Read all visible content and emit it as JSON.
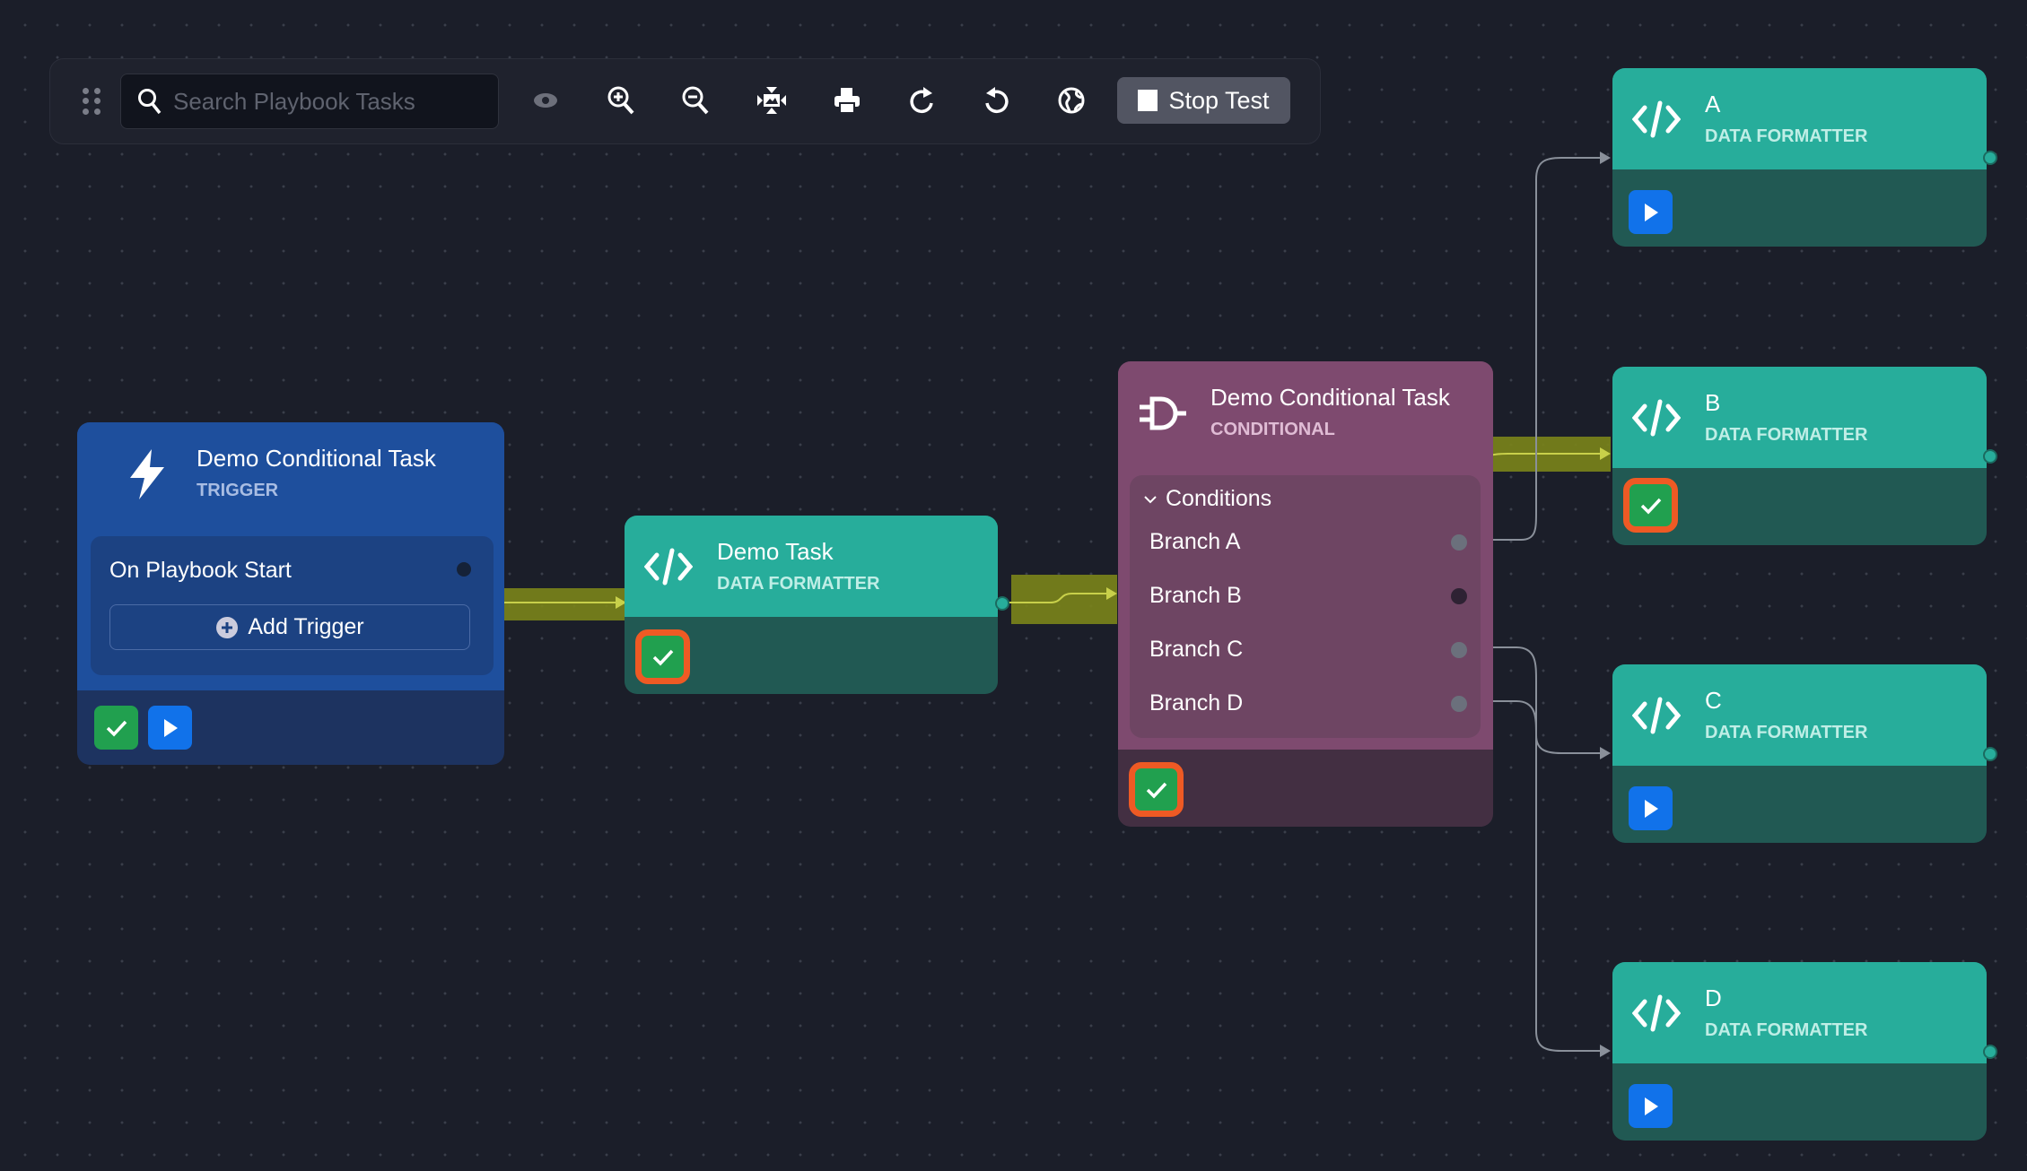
{
  "toolbar": {
    "search_placeholder": "Search Playbook Tasks",
    "icons": [
      "visibility-icon",
      "zoom-in-icon",
      "zoom-out-icon",
      "fit-view-icon",
      "print-icon",
      "redo-icon",
      "undo-icon",
      "globe-icon"
    ],
    "stop_label": "Stop Test"
  },
  "trigger_node": {
    "title": "Demo Conditional Task",
    "type": "TRIGGER",
    "trigger": "On Playbook Start",
    "add_label": "Add Trigger"
  },
  "task_node": {
    "title": "Demo Task",
    "type": "DATA FORMATTER"
  },
  "conditional_node": {
    "title": "Demo Conditional Task",
    "type": "CONDITIONAL",
    "conditions_label": "Conditions",
    "branches": [
      "Branch A",
      "Branch B",
      "Branch C",
      "Branch D"
    ]
  },
  "targets": [
    {
      "title": "A",
      "type": "DATA FORMATTER",
      "status": "play"
    },
    {
      "title": "B",
      "type": "DATA FORMATTER",
      "status": "success"
    },
    {
      "title": "C",
      "type": "DATA FORMATTER",
      "status": "play"
    },
    {
      "title": "D",
      "type": "DATA FORMATTER",
      "status": "play"
    }
  ],
  "colors": {
    "active_edge": "#7b8419",
    "success": "#21a04f",
    "highlight": "#ee5a24",
    "play": "#1172ea",
    "teal": "#27ad9b",
    "trigger": "#1e4f9d",
    "conditional": "#7e4a6f"
  }
}
